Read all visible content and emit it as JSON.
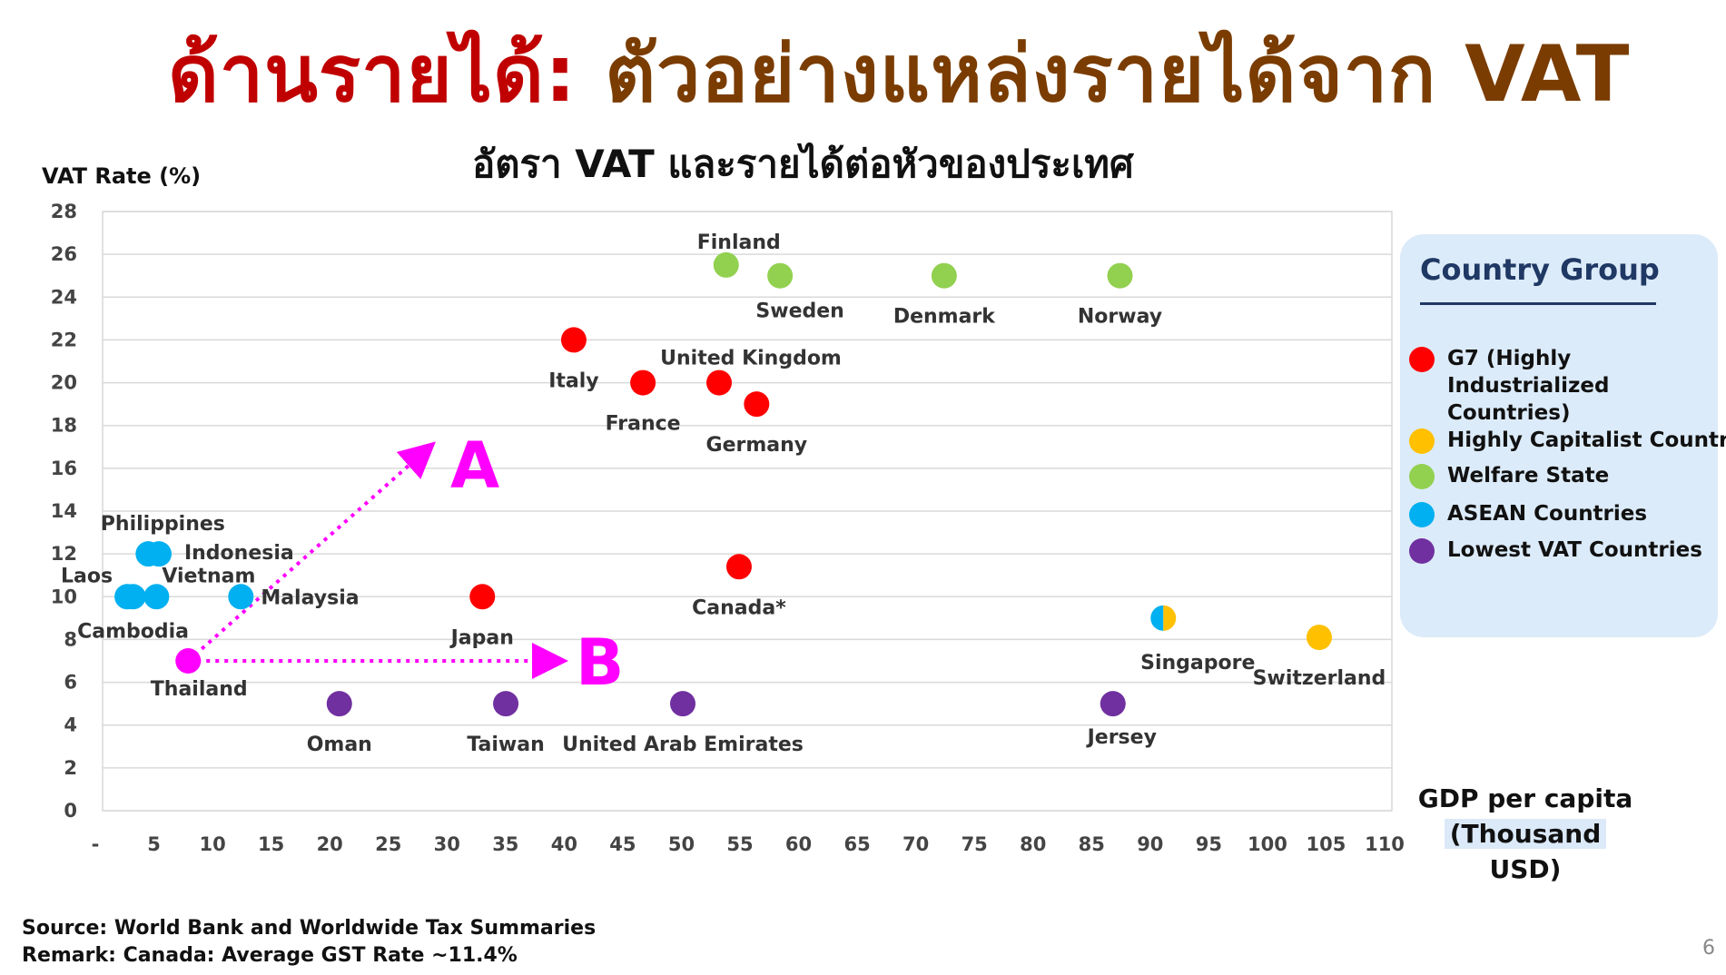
{
  "slide": {
    "title_part1": "ด้านรายได้:",
    "title_part2": " ตัวอย่างแหล่งรายได้จาก VAT",
    "source": "Source: World Bank and Worldwide Tax Summaries",
    "remark": "Remark: Canada: Average GST Rate ~11.4%",
    "page_number": "6"
  },
  "legend": {
    "title": "Country Group",
    "items": [
      {
        "label": "G7 (Highly Industrialized Countries)",
        "color": "#ff0000"
      },
      {
        "label": "Highly Capitalist Countries",
        "color": "#ffc000"
      },
      {
        "label": "Welfare State",
        "color": "#92d050"
      },
      {
        "label": "ASEAN Countries",
        "color": "#00b0f0"
      },
      {
        "label": "Lowest VAT Countries",
        "color": "#7030a0"
      }
    ]
  },
  "chart_data": {
    "type": "scatter",
    "title": "อัตรา VAT และรายได้ต่อหัวของประเทศ",
    "ylabel": "VAT Rate (%)",
    "xlabel_line1": "GDP per capita",
    "xlabel_line2": "(Thousand",
    "xlabel_line3": "USD)",
    "xlim": [
      0,
      110
    ],
    "ylim": [
      0,
      28
    ],
    "x_ticks": [
      "-",
      "5",
      "10",
      "15",
      "20",
      "25",
      "30",
      "35",
      "40",
      "45",
      "50",
      "55",
      "60",
      "65",
      "70",
      "75",
      "80",
      "85",
      "90",
      "95",
      "100",
      "105",
      "110"
    ],
    "y_ticks": [
      "0",
      "2",
      "4",
      "6",
      "8",
      "10",
      "12",
      "14",
      "16",
      "18",
      "20",
      "22",
      "24",
      "26",
      "28"
    ],
    "grid": true,
    "points": [
      {
        "name": "Finland",
        "group": "Welfare State",
        "x": 53.2,
        "y": 25.5,
        "color": "#92d050"
      },
      {
        "name": "Sweden",
        "group": "Welfare State",
        "x": 57.8,
        "y": 25,
        "color": "#92d050"
      },
      {
        "name": "Denmark",
        "group": "Welfare State",
        "x": 71.8,
        "y": 25,
        "color": "#92d050"
      },
      {
        "name": "Norway",
        "group": "Welfare State",
        "x": 86.8,
        "y": 25,
        "color": "#92d050"
      },
      {
        "name": "Italy",
        "group": "G7",
        "x": 40.2,
        "y": 22,
        "color": "#ff0000"
      },
      {
        "name": "France",
        "group": "G7",
        "x": 46.1,
        "y": 20,
        "color": "#ff0000"
      },
      {
        "name": "United Kingdom",
        "group": "G7",
        "x": 52.6,
        "y": 20,
        "color": "#ff0000"
      },
      {
        "name": "Germany",
        "group": "G7",
        "x": 55.8,
        "y": 19,
        "color": "#ff0000"
      },
      {
        "name": "Canada*",
        "group": "G7",
        "x": 54.3,
        "y": 11.4,
        "color": "#ff0000"
      },
      {
        "name": "Japan",
        "group": "G7",
        "x": 32.4,
        "y": 10,
        "color": "#ff0000"
      },
      {
        "name": "Philippines",
        "group": "ASEAN",
        "x": 3.9,
        "y": 12,
        "color": "#00b0f0"
      },
      {
        "name": "Indonesia",
        "group": "ASEAN",
        "x": 4.8,
        "y": 12,
        "color": "#00b0f0"
      },
      {
        "name": "Laos",
        "group": "ASEAN",
        "x": 2.1,
        "y": 10,
        "color": "#00b0f0"
      },
      {
        "name": "Cambodia",
        "group": "ASEAN",
        "x": 2.6,
        "y": 10,
        "color": "#00b0f0"
      },
      {
        "name": "Vietnam",
        "group": "ASEAN",
        "x": 4.6,
        "y": 10,
        "color": "#00b0f0"
      },
      {
        "name": "Malaysia",
        "group": "ASEAN",
        "x": 11.8,
        "y": 10,
        "color": "#00b0f0"
      },
      {
        "name": "Thailand",
        "group": "Thailand",
        "x": 7.3,
        "y": 7,
        "color": "#ff00ff"
      },
      {
        "name": "Oman",
        "group": "Lowest VAT Countries",
        "x": 20.2,
        "y": 5,
        "color": "#7030a0"
      },
      {
        "name": "Taiwan",
        "group": "Lowest VAT Countries",
        "x": 34.4,
        "y": 5,
        "color": "#7030a0"
      },
      {
        "name": "United Arab Emirates",
        "group": "Lowest VAT Countries",
        "x": 49.5,
        "y": 5,
        "color": "#7030a0"
      },
      {
        "name": "Jersey",
        "group": "Lowest VAT Countries",
        "x": 86.2,
        "y": 5,
        "color": "#7030a0"
      },
      {
        "name": "Singapore",
        "group": "ASEAN / Highly Capitalist",
        "x": 90.5,
        "y": 9,
        "color": "#00b0f0",
        "color2": "#ffc000"
      },
      {
        "name": "Switzerland",
        "group": "Highly Capitalist Countries",
        "x": 103.8,
        "y": 8.1,
        "color": "#ffc000"
      }
    ],
    "annotations": [
      {
        "label": "A",
        "from": [
          7.3,
          7
        ],
        "to": [
          27.5,
          16.8
        ]
      },
      {
        "label": "B",
        "from": [
          7.3,
          7
        ],
        "to": [
          38.5,
          7
        ]
      }
    ]
  }
}
